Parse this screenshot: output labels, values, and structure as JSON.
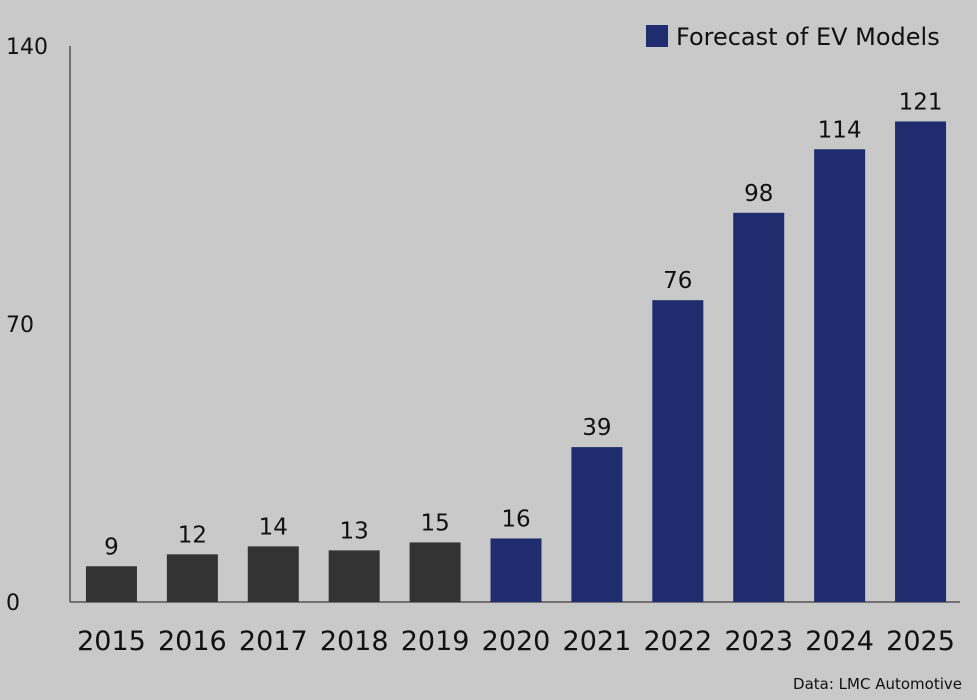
{
  "chart_data": {
    "type": "bar",
    "categories": [
      "2015",
      "2016",
      "2017",
      "2018",
      "2019",
      "2020",
      "2021",
      "2022",
      "2023",
      "2024",
      "2025"
    ],
    "values": [
      9,
      12,
      14,
      13,
      15,
      16,
      39,
      76,
      98,
      114,
      121
    ],
    "forecast": [
      false,
      false,
      false,
      false,
      false,
      true,
      true,
      true,
      true,
      true,
      true
    ],
    "ylim": [
      0,
      140
    ],
    "yticks": [
      0,
      70,
      140
    ],
    "legend": {
      "label": "Forecast of EV Models",
      "position": "top-right"
    },
    "colors": {
      "actual": "#333333",
      "forecast": "#1f2d6e"
    },
    "grid": false,
    "title": "",
    "xlabel": "",
    "ylabel": ""
  },
  "source_note": "Data: LMC Automotive"
}
